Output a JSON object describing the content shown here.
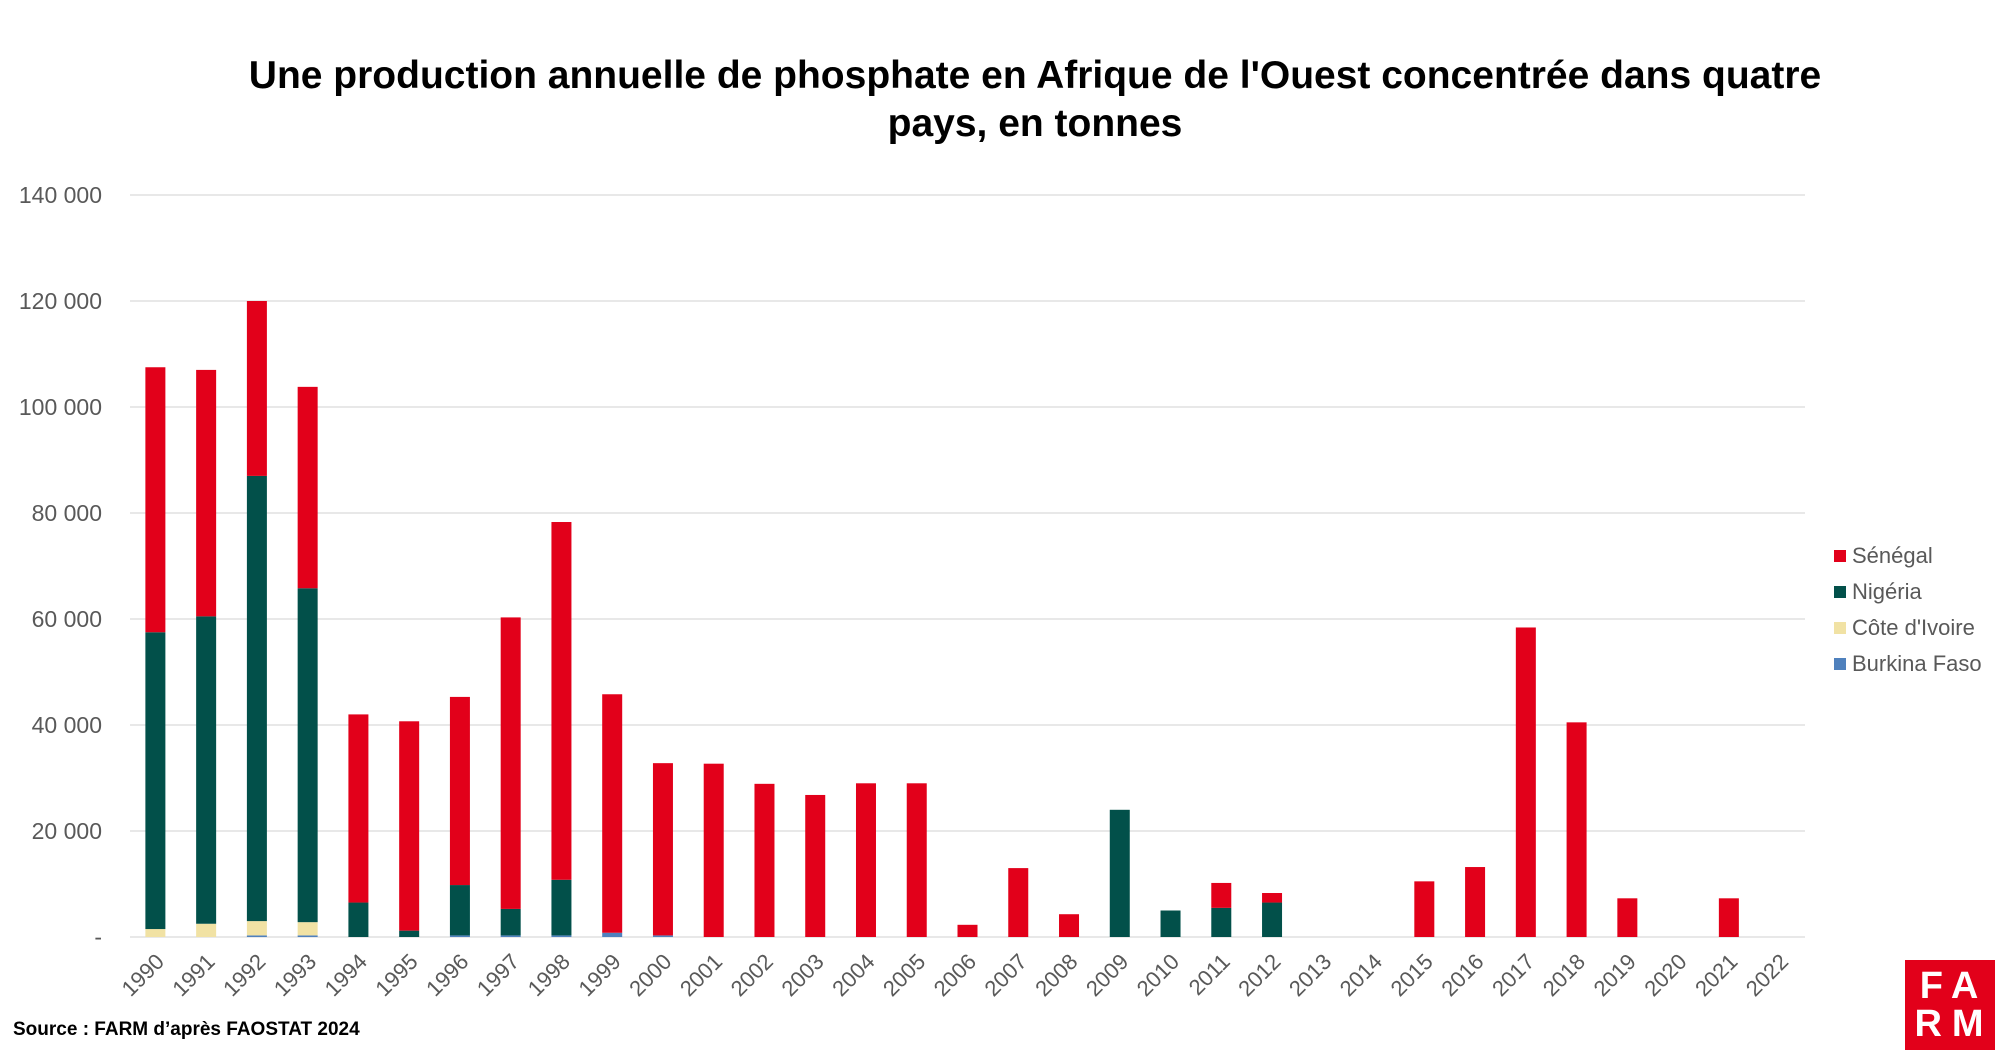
{
  "colors": {
    "senegal": "#e2001a",
    "nigeria": "#02504a",
    "cote_divoire": "#f1e2a4",
    "burkina_faso": "#4f81bd",
    "gridline": "#d9d9d9",
    "tick_text": "#595959"
  },
  "source": "Source : FARM d’après FAOSTAT 2024",
  "logo": {
    "line1": "FA",
    "line2": "RM"
  },
  "chart_data": {
    "type": "bar",
    "stacked": true,
    "title": "Une production annuelle de phosphate en Afrique de l'Ouest concentrée dans quatre pays, en tonnes",
    "xlabel": "",
    "ylabel": "",
    "ylim": [
      0,
      140000
    ],
    "yticks": [
      0,
      20000,
      40000,
      60000,
      80000,
      100000,
      120000,
      140000
    ],
    "ytick_labels": [
      "-",
      "20 000",
      "40 000",
      "60 000",
      "80 000",
      "100 000",
      "120 000",
      "140 000"
    ],
    "grid": true,
    "legend_position": "right",
    "categories": [
      "1990",
      "1991",
      "1992",
      "1993",
      "1994",
      "1995",
      "1996",
      "1997",
      "1998",
      "1999",
      "2000",
      "2001",
      "2002",
      "2003",
      "2004",
      "2005",
      "2006",
      "2007",
      "2008",
      "2009",
      "2010",
      "2011",
      "2012",
      "2013",
      "2014",
      "2015",
      "2016",
      "2017",
      "2018",
      "2019",
      "2020",
      "2021",
      "2022"
    ],
    "series": [
      {
        "name": "Burkina Faso",
        "color_key": "burkina_faso",
        "values": [
          0,
          0,
          300,
          300,
          0,
          0,
          300,
          300,
          300,
          800,
          300,
          0,
          0,
          0,
          0,
          0,
          0,
          0,
          0,
          0,
          0,
          0,
          0,
          0,
          0,
          0,
          0,
          0,
          0,
          0,
          0,
          0,
          0
        ]
      },
      {
        "name": "Côte d'Ivoire",
        "color_key": "cote_divoire",
        "values": [
          1500,
          2500,
          2700,
          2500,
          0,
          0,
          0,
          0,
          0,
          0,
          0,
          0,
          0,
          0,
          0,
          0,
          0,
          0,
          0,
          0,
          0,
          0,
          0,
          0,
          0,
          0,
          0,
          0,
          0,
          0,
          0,
          0,
          0
        ]
      },
      {
        "name": "Nigéria",
        "color_key": "nigeria",
        "values": [
          56000,
          58000,
          84000,
          63000,
          6500,
          1200,
          9500,
          5000,
          10500,
          0,
          0,
          0,
          0,
          0,
          0,
          0,
          0,
          0,
          0,
          24000,
          5000,
          5500,
          6500,
          0,
          0,
          0,
          0,
          0,
          0,
          0,
          0,
          0,
          0
        ]
      },
      {
        "name": "Sénégal",
        "color_key": "senegal",
        "values": [
          50000,
          46500,
          33000,
          38000,
          35500,
          39500,
          35500,
          55000,
          67500,
          45000,
          32500,
          32700,
          28900,
          26800,
          29000,
          29000,
          2300,
          13000,
          4300,
          0,
          0,
          4700,
          1800,
          0,
          0,
          10500,
          13200,
          58400,
          40500,
          7300,
          0,
          7300,
          0
        ]
      }
    ],
    "legend_order": [
      "Sénégal",
      "Nigéria",
      "Côte d'Ivoire",
      "Burkina Faso"
    ]
  }
}
